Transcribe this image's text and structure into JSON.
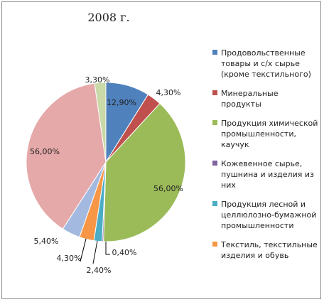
{
  "chart_data": {
    "type": "pie",
    "title": "2008 г.",
    "categories": [
      "Продовольственные товары и с/х сырье (кроме текстильного)",
      "Минеральные продукты",
      "Продукция химической промышленности, каучук",
      "Кожевенное сырье, пушнина и изделия из них",
      "Продукция лесной и целлюлозно-бумажной промышленности",
      "Текстиль, текстильные изделия и обувь",
      "",
      "",
      ""
    ],
    "values": [
      12.9,
      4.3,
      56.0,
      0.4,
      2.4,
      4.3,
      5.4,
      56.0,
      3.3
    ],
    "labels": [
      "12,90%",
      "4,30%",
      "56,00%",
      "0,40%",
      "2,40%",
      "4,30%",
      "5,40%",
      "56,00%",
      "3,30%"
    ],
    "colors": [
      "#4f81bd",
      "#c0504d",
      "#9bbb59",
      "#8064a2",
      "#4bacc6",
      "#f79646",
      "#a3b9e0",
      "#e6a9a9",
      "#c9d9a8"
    ],
    "legend_position": "right"
  }
}
